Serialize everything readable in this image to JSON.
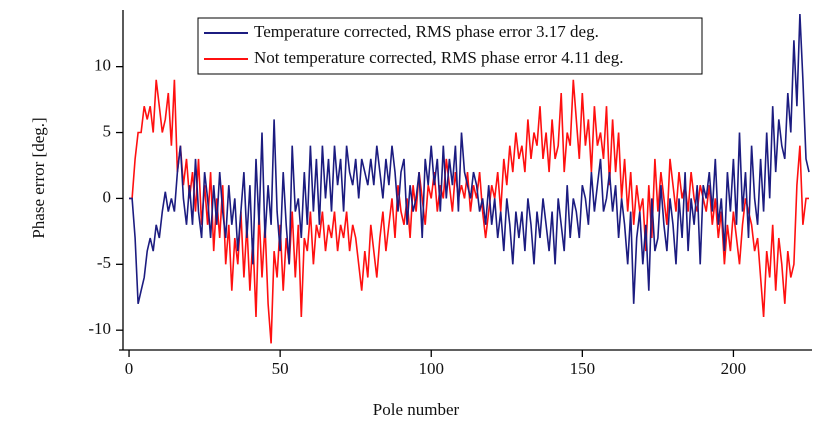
{
  "chart_data": {
    "type": "line",
    "x_label": "Pole number",
    "y_label": "Phase error [deg.]",
    "xlim": [
      -2,
      226
    ],
    "ylim": [
      -11.2,
      14.3
    ],
    "xticks": [
      0,
      50,
      100,
      150,
      200
    ],
    "yticks": [
      -10,
      -5,
      0,
      5,
      10
    ],
    "legend": "top",
    "x": [
      0,
      1,
      2,
      3,
      4,
      5,
      6,
      7,
      8,
      9,
      10,
      11,
      12,
      13,
      14,
      15,
      16,
      17,
      18,
      19,
      20,
      21,
      22,
      23,
      24,
      25,
      26,
      27,
      28,
      29,
      30,
      31,
      32,
      33,
      34,
      35,
      36,
      37,
      38,
      39,
      40,
      41,
      42,
      43,
      44,
      45,
      46,
      47,
      48,
      49,
      50,
      51,
      52,
      53,
      54,
      55,
      56,
      57,
      58,
      59,
      60,
      61,
      62,
      63,
      64,
      65,
      66,
      67,
      68,
      69,
      70,
      71,
      72,
      73,
      74,
      75,
      76,
      77,
      78,
      79,
      80,
      81,
      82,
      83,
      84,
      85,
      86,
      87,
      88,
      89,
      90,
      91,
      92,
      93,
      94,
      95,
      96,
      97,
      98,
      99,
      100,
      101,
      102,
      103,
      104,
      105,
      106,
      107,
      108,
      109,
      110,
      111,
      112,
      113,
      114,
      115,
      116,
      117,
      118,
      119,
      120,
      121,
      122,
      123,
      124,
      125,
      126,
      127,
      128,
      129,
      130,
      131,
      132,
      133,
      134,
      135,
      136,
      137,
      138,
      139,
      140,
      141,
      142,
      143,
      144,
      145,
      146,
      147,
      148,
      149,
      150,
      151,
      152,
      153,
      154,
      155,
      156,
      157,
      158,
      159,
      160,
      161,
      162,
      163,
      164,
      165,
      166,
      167,
      168,
      169,
      170,
      171,
      172,
      173,
      174,
      175,
      176,
      177,
      178,
      179,
      180,
      181,
      182,
      183,
      184,
      185,
      186,
      187,
      188,
      189,
      190,
      191,
      192,
      193,
      194,
      195,
      196,
      197,
      198,
      199,
      200,
      201,
      202,
      203,
      204,
      205,
      206,
      207,
      208,
      209,
      210,
      211,
      212,
      213,
      214,
      215,
      216,
      217,
      218,
      219,
      220,
      221,
      222,
      223,
      224,
      225
    ],
    "series": [
      {
        "name": "Not temperature corrected, RMS phase error 4.11 deg.",
        "color": "#ff1010",
        "values": [
          0,
          0,
          3,
          5,
          5,
          7,
          6,
          7,
          5,
          9,
          7,
          5,
          6,
          8,
          4,
          9,
          2,
          4,
          1,
          3,
          0,
          2,
          -1,
          3,
          -2,
          1,
          -2,
          2,
          -4,
          0,
          -3,
          1,
          -5,
          -2,
          -7,
          -3,
          -5,
          -1,
          -6,
          -2,
          -7,
          -3,
          -9,
          -1,
          -6,
          -2,
          -8,
          -11,
          -4,
          -6,
          -2,
          -7,
          -3,
          -5,
          -1,
          -6,
          -2,
          -9,
          -3,
          -4,
          -1,
          -5,
          -2,
          -3,
          -1,
          -4,
          -2,
          -3,
          -1,
          -4,
          -2,
          -3,
          -1,
          -4,
          -2,
          -3,
          -5,
          -7,
          -4,
          -6,
          -2,
          -4,
          -6,
          -3,
          -1,
          -4,
          -2,
          0,
          -3,
          1,
          -1,
          -2,
          0,
          -3,
          1,
          -1,
          2,
          0,
          -2,
          1,
          0,
          2,
          -1,
          1,
          0,
          3,
          1,
          -1,
          2,
          0,
          1,
          0,
          2,
          -1,
          1,
          0,
          2,
          -1,
          -3,
          -1,
          1,
          0,
          2,
          -1,
          3,
          1,
          4,
          2,
          5,
          3,
          4,
          2,
          6,
          3,
          5,
          4,
          7,
          3,
          5,
          2,
          6,
          3,
          4,
          8,
          2,
          5,
          4,
          9,
          6,
          3,
          8,
          4,
          6,
          2,
          7,
          4,
          5,
          3,
          7,
          1,
          6,
          2,
          5,
          0,
          3,
          -1,
          2,
          -2,
          1,
          -1,
          0,
          -4,
          1,
          -3,
          3,
          -1,
          2,
          0,
          -2,
          3,
          1,
          -1,
          2,
          0,
          1,
          -1,
          2,
          0,
          -1,
          1,
          0,
          -1,
          1,
          -2,
          0,
          -3,
          -1,
          -5,
          -2,
          -4,
          -1,
          -3,
          -5,
          -2,
          0,
          -1,
          -2,
          -4,
          -3,
          -6,
          -9,
          -4,
          -6,
          -2,
          -7,
          -3,
          -5,
          -8,
          -4,
          -6,
          -5,
          1,
          4,
          -2,
          0,
          0
        ]
      },
      {
        "name": "Temperature corrected, RMS phase error 3.17 deg.",
        "color": "#1c1c80",
        "values": [
          0,
          0,
          -3,
          -8,
          -7,
          -6,
          -4,
          -3,
          -4,
          -2,
          -3,
          -1,
          0.5,
          -1,
          0,
          -1,
          2,
          4,
          0,
          -2,
          1,
          -2,
          3,
          -1,
          -3,
          2,
          0,
          -3,
          1,
          -2,
          2,
          -1,
          -3,
          1,
          -2,
          0,
          -4,
          -1,
          2,
          -3,
          1,
          -5,
          3,
          -2,
          5,
          -3,
          1,
          -2,
          6,
          -1,
          -4,
          2,
          -2,
          -5,
          4,
          -1,
          0,
          -3,
          2,
          -2,
          4,
          -1,
          3,
          -2,
          4,
          0,
          3,
          -1,
          4,
          1,
          3,
          -1,
          4,
          2,
          1,
          3,
          0,
          3,
          2,
          1,
          3,
          1,
          4,
          2,
          0,
          3,
          1,
          4,
          2,
          -1,
          2,
          3,
          -2,
          1,
          -1,
          0,
          2,
          -3,
          3,
          1,
          4,
          1,
          3,
          -1,
          4,
          0,
          3,
          1,
          4,
          -1,
          5,
          2,
          1,
          0,
          2,
          1,
          -1,
          0,
          -2,
          1,
          -2,
          0,
          -3,
          -1,
          -4,
          0,
          -2,
          -5,
          -1,
          -3,
          -1,
          -4,
          0,
          -2,
          -5,
          -1,
          -3,
          0,
          -2,
          -4,
          -1,
          -5,
          0,
          -2,
          -4,
          1,
          -3,
          0,
          -1,
          -3,
          1,
          0,
          -2,
          2,
          -1,
          1,
          3,
          -1,
          0,
          2,
          -1,
          1,
          -3,
          0,
          -2,
          -5,
          -1,
          -8,
          -3,
          -1,
          -5,
          -2,
          -7,
          0,
          -4,
          -3,
          1,
          -2,
          -4,
          0,
          -2,
          -5,
          0,
          -3,
          2,
          -4,
          0,
          -2,
          1,
          -5,
          1,
          0,
          2,
          -1,
          3,
          -2,
          0,
          -4,
          2,
          -1,
          3,
          -2,
          5,
          -1,
          2,
          -3,
          4,
          0,
          -2,
          3,
          -1,
          5,
          0,
          7,
          2,
          6,
          4,
          3,
          8,
          5,
          12,
          7,
          14,
          9,
          3,
          2
        ]
      }
    ]
  }
}
